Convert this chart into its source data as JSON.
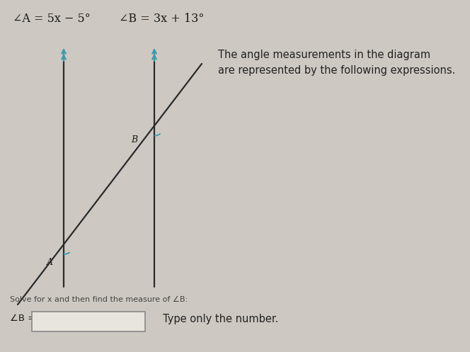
{
  "bg_color": "#cdc8c2",
  "title_angle_A": "∠A = 5x − 5°",
  "title_angle_B": "∠B = 3x + 13°",
  "desc_line1": "The angle measurements in the diagram",
  "desc_line2": "are represented by the following expressions.",
  "solve_text": "Solve for x and then find the measure of ∠B:",
  "angle_B_label": "∠B =",
  "type_only": "Type only the number.",
  "label_A": "A",
  "label_B": "B",
  "line_color": "#2a2a2a",
  "arrow_color": "#3a9ab0",
  "arc_color": "#3a9ab0",
  "text_dark": "#1a1a1a",
  "text_desc": "#222222",
  "box_edge": "#888888",
  "box_fill": "#e8e4de",
  "small_text_color": "#444444",
  "figw": 6.64,
  "figh": 4.97,
  "dpi": 100
}
